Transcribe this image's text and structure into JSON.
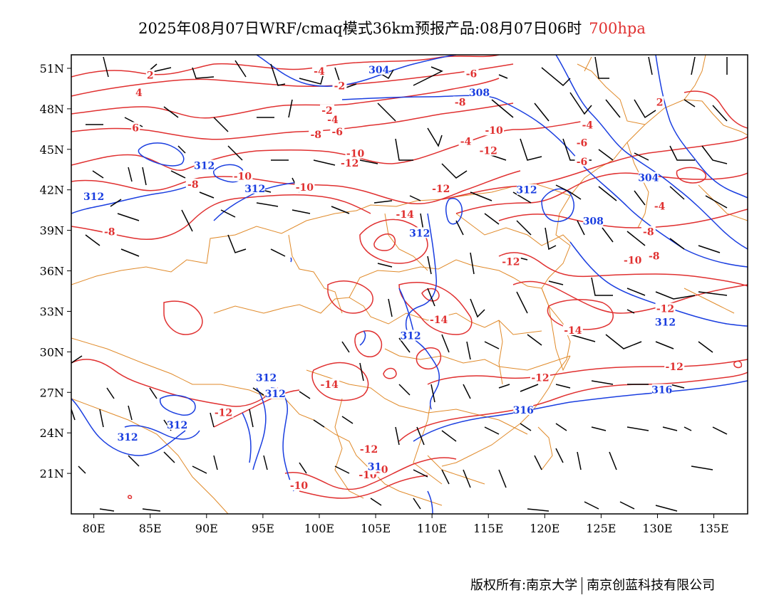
{
  "title": "2025年08月07日WRF/cmaq模式36km预报产品:08月07日06时",
  "level": "700hpa",
  "footer": {
    "left": "版权所有:南京大学",
    "right": "南京创蓝科技有限公司"
  },
  "map": {
    "lon_range": [
      78,
      138
    ],
    "lat_range": [
      18,
      52
    ],
    "lat_ticks": [
      "51N",
      "48N",
      "45N",
      "42N",
      "39N",
      "36N",
      "33N",
      "30N",
      "27N",
      "24N",
      "21N"
    ],
    "lat_tick_values": [
      51,
      48,
      45,
      42,
      39,
      36,
      33,
      30,
      27,
      24,
      21
    ],
    "lon_ticks": [
      "80E",
      "85E",
      "90E",
      "95E",
      "100E",
      "105E",
      "110E",
      "115E",
      "120E",
      "125E",
      "130E",
      "135E"
    ],
    "lon_tick_values": [
      80,
      85,
      90,
      95,
      100,
      105,
      110,
      115,
      120,
      125,
      130,
      135
    ],
    "colors": {
      "temperature": "#e03030",
      "geopotential": "#1a3ee0",
      "border": "#e08a2a",
      "wind": "#000000",
      "frame": "#000000"
    },
    "temperature_labels": [
      {
        "text": "2",
        "lon": 85,
        "lat": 50.5
      },
      {
        "text": "4",
        "lon": 84,
        "lat": 49.2
      },
      {
        "text": "6",
        "lon": 83.7,
        "lat": 46.6
      },
      {
        "text": "-2",
        "lon": 101.8,
        "lat": 49.7
      },
      {
        "text": "-4",
        "lon": 100,
        "lat": 50.8
      },
      {
        "text": "-2",
        "lon": 100.7,
        "lat": 47.9
      },
      {
        "text": "-4",
        "lon": 101.2,
        "lat": 47.2
      },
      {
        "text": "-6",
        "lon": 101.6,
        "lat": 46.3
      },
      {
        "text": "-8",
        "lon": 99.7,
        "lat": 46.1
      },
      {
        "text": "-6",
        "lon": 113.5,
        "lat": 50.6
      },
      {
        "text": "-8",
        "lon": 112.5,
        "lat": 48.5
      },
      {
        "text": "-10",
        "lon": 115.5,
        "lat": 46.4
      },
      {
        "text": "-4",
        "lon": 113,
        "lat": 45.6
      },
      {
        "text": "-12",
        "lon": 115,
        "lat": 44.9
      },
      {
        "text": "-10",
        "lon": 103.2,
        "lat": 44.7
      },
      {
        "text": "-12",
        "lon": 102.7,
        "lat": 44
      },
      {
        "text": "-10",
        "lon": 93.2,
        "lat": 43
      },
      {
        "text": "-8",
        "lon": 88.8,
        "lat": 42.4
      },
      {
        "text": "-10",
        "lon": 98.7,
        "lat": 42.2
      },
      {
        "text": "-12",
        "lon": 110.8,
        "lat": 42.1
      },
      {
        "text": "-14",
        "lon": 107.6,
        "lat": 40.2
      },
      {
        "text": "-8",
        "lon": 81.4,
        "lat": 38.9
      },
      {
        "text": "-12",
        "lon": 117,
        "lat": 36.7
      },
      {
        "text": "-14",
        "lon": 110.6,
        "lat": 32.4
      },
      {
        "text": "-14",
        "lon": 100.9,
        "lat": 27.6
      },
      {
        "text": "-12",
        "lon": 91.5,
        "lat": 25.5
      },
      {
        "text": "-12",
        "lon": 104.4,
        "lat": 22.8
      },
      {
        "text": "-10",
        "lon": 104.3,
        "lat": 20.9
      },
      {
        "text": "-10",
        "lon": 105.3,
        "lat": 21.3
      },
      {
        "text": "-10",
        "lon": 98.2,
        "lat": 20.1
      },
      {
        "text": "-12",
        "lon": 119.6,
        "lat": 28.1
      },
      {
        "text": "-14",
        "lon": 122.5,
        "lat": 31.6
      },
      {
        "text": "-12",
        "lon": 130.7,
        "lat": 33.2
      },
      {
        "text": "-12",
        "lon": 131.5,
        "lat": 28.9
      },
      {
        "text": "-10",
        "lon": 127.8,
        "lat": 36.8
      },
      {
        "text": "-8",
        "lon": 129.7,
        "lat": 37.1
      },
      {
        "text": "-8",
        "lon": 129.2,
        "lat": 38.9
      },
      {
        "text": "-4",
        "lon": 130.2,
        "lat": 40.8
      },
      {
        "text": "-4",
        "lon": 123.8,
        "lat": 46.8
      },
      {
        "text": "-6",
        "lon": 123.3,
        "lat": 45.5
      },
      {
        "text": "-6",
        "lon": 123.3,
        "lat": 44.1
      },
      {
        "text": "2",
        "lon": 130.2,
        "lat": 48.5
      }
    ],
    "geopotential_labels": [
      {
        "text": "304",
        "lon": 105.3,
        "lat": 50.9
      },
      {
        "text": "308",
        "lon": 114.2,
        "lat": 49.2
      },
      {
        "text": "312",
        "lon": 89.8,
        "lat": 43.8
      },
      {
        "text": "312",
        "lon": 80.0,
        "lat": 41.5
      },
      {
        "text": "312",
        "lon": 94.3,
        "lat": 42.1
      },
      {
        "text": "312",
        "lon": 108.9,
        "lat": 38.8
      },
      {
        "text": "312",
        "lon": 118.4,
        "lat": 42
      },
      {
        "text": "304",
        "lon": 129.2,
        "lat": 42.9
      },
      {
        "text": "308",
        "lon": 124.3,
        "lat": 39.7
      },
      {
        "text": "312",
        "lon": 130.7,
        "lat": 32.2
      },
      {
        "text": "312",
        "lon": 108.1,
        "lat": 31.2
      },
      {
        "text": "312",
        "lon": 95.3,
        "lat": 28.1
      },
      {
        "text": "312",
        "lon": 96.1,
        "lat": 26.9
      },
      {
        "text": "312",
        "lon": 87.4,
        "lat": 24.6
      },
      {
        "text": "312",
        "lon": 83,
        "lat": 23.7
      },
      {
        "text": "316",
        "lon": 130.4,
        "lat": 27.2
      },
      {
        "text": "316",
        "lon": 118.1,
        "lat": 25.7
      },
      {
        "text": "31",
        "lon": 104.9,
        "lat": 21.5
      }
    ]
  }
}
